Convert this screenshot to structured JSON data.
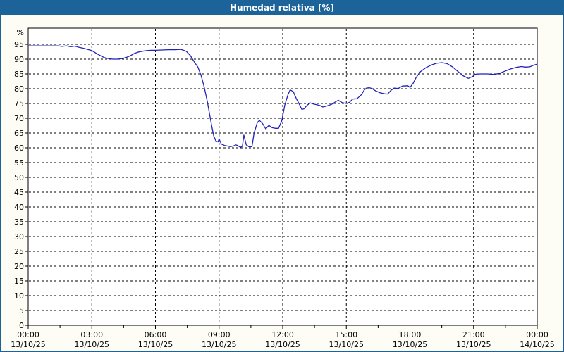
{
  "window": {
    "title": "Humedad relativa [%]",
    "colors": {
      "title_bar": "#1c6399",
      "frame_border": "#1c6399",
      "content_background": "#fdfdf6",
      "plot_background": "#ffffff",
      "grid": "#000000",
      "axis": "#000000",
      "label": "#000000"
    }
  },
  "chart_data": {
    "type": "line",
    "title": "Humedad relativa [%]",
    "ylabel": "%",
    "unit_label": "%",
    "ylim": [
      0,
      100
    ],
    "xlim_hours": [
      0,
      24
    ],
    "grid": "dashed",
    "legend": "none",
    "line_color": "#2222bb",
    "y_ticks": [
      0,
      5,
      10,
      15,
      20,
      25,
      30,
      35,
      40,
      45,
      50,
      55,
      60,
      65,
      70,
      75,
      80,
      85,
      90,
      95
    ],
    "x_ticks": [
      {
        "hour": 0,
        "time": "00:00",
        "date": "13/10/25"
      },
      {
        "hour": 3,
        "time": "03:00",
        "date": "13/10/25"
      },
      {
        "hour": 6,
        "time": "06:00",
        "date": "13/10/25"
      },
      {
        "hour": 9,
        "time": "09:00",
        "date": "13/10/25"
      },
      {
        "hour": 12,
        "time": "12:00",
        "date": "13/10/25"
      },
      {
        "hour": 15,
        "time": "15:00",
        "date": "13/10/25"
      },
      {
        "hour": 18,
        "time": "18:00",
        "date": "13/10/25"
      },
      {
        "hour": 21,
        "time": "21:00",
        "date": "13/10/25"
      },
      {
        "hour": 24,
        "time": "00:00",
        "date": "14/10/25"
      }
    ],
    "minor_tick_interval_hours": 1.5,
    "series": [
      {
        "name": "Humedad relativa",
        "x_hours": [
          0.0,
          0.5,
          1.0,
          1.4,
          1.6,
          1.8,
          2.0,
          2.2,
          2.4,
          2.6,
          2.8,
          3.0,
          3.2,
          3.4,
          3.6,
          3.8,
          4.0,
          4.2,
          4.4,
          4.6,
          4.8,
          5.0,
          5.2,
          5.4,
          5.6,
          5.8,
          6.0,
          6.3,
          6.6,
          6.9,
          7.2,
          7.45,
          7.65,
          7.85,
          8.0,
          8.15,
          8.3,
          8.45,
          8.55,
          8.65,
          8.75,
          8.85,
          8.95,
          9.0,
          9.1,
          9.25,
          9.4,
          9.55,
          9.7,
          9.8,
          9.9,
          10.0,
          10.1,
          10.17,
          10.28,
          10.4,
          10.55,
          10.65,
          10.8,
          10.9,
          11.05,
          11.2,
          11.35,
          11.5,
          11.65,
          11.8,
          11.95,
          12.1,
          12.25,
          12.35,
          12.5,
          12.65,
          12.8,
          12.9,
          13.0,
          13.15,
          13.3,
          13.45,
          13.6,
          13.75,
          13.9,
          14.1,
          14.3,
          14.5,
          14.62,
          14.8,
          15.0,
          15.15,
          15.3,
          15.5,
          15.7,
          15.85,
          16.0,
          16.2,
          16.4,
          16.6,
          16.8,
          16.95,
          17.1,
          17.25,
          17.45,
          17.65,
          17.9,
          18.0,
          18.15,
          18.3,
          18.5,
          18.75,
          19.0,
          19.25,
          19.5,
          19.75,
          20.0,
          20.25,
          20.5,
          20.75,
          20.95,
          21.1,
          21.35,
          21.65,
          22.0,
          22.25,
          22.5,
          22.75,
          23.0,
          23.25,
          23.45,
          23.65,
          23.85,
          24.0
        ],
        "values": [
          94.5,
          94.5,
          94.5,
          94.5,
          94.3,
          94.5,
          94.2,
          94.4,
          94.0,
          93.7,
          93.3,
          92.9,
          92.0,
          91.2,
          90.5,
          90.2,
          90.0,
          90.0,
          90.2,
          90.5,
          91.1,
          91.9,
          92.4,
          92.7,
          92.9,
          93.0,
          93.0,
          93.1,
          93.2,
          93.2,
          93.3,
          92.7,
          91.2,
          88.8,
          87.3,
          84.5,
          80.5,
          75.5,
          71.5,
          67.5,
          64.0,
          62.3,
          62.0,
          63.0,
          61.3,
          60.8,
          60.6,
          60.4,
          60.7,
          61.0,
          60.7,
          60.2,
          60.5,
          64.3,
          61.0,
          60.4,
          60.4,
          65.0,
          68.5,
          69.3,
          68.2,
          66.4,
          67.6,
          66.8,
          66.6,
          66.6,
          69.0,
          74.5,
          78.0,
          79.6,
          79.0,
          76.5,
          74.5,
          73.0,
          73.2,
          74.4,
          75.2,
          74.8,
          74.6,
          74.3,
          73.8,
          74.2,
          74.7,
          75.6,
          76.1,
          75.3,
          75.0,
          75.4,
          76.5,
          76.6,
          77.9,
          79.6,
          80.5,
          80.1,
          79.2,
          78.6,
          78.3,
          78.2,
          79.4,
          80.2,
          80.1,
          80.9,
          81.0,
          80.4,
          81.8,
          83.9,
          85.8,
          87.1,
          88.0,
          88.6,
          88.8,
          88.5,
          87.4,
          85.9,
          84.4,
          83.5,
          84.1,
          84.9,
          85.0,
          85.0,
          84.8,
          85.3,
          86.0,
          86.7,
          87.2,
          87.5,
          87.3,
          87.4,
          88.0,
          88.3
        ]
      }
    ]
  }
}
